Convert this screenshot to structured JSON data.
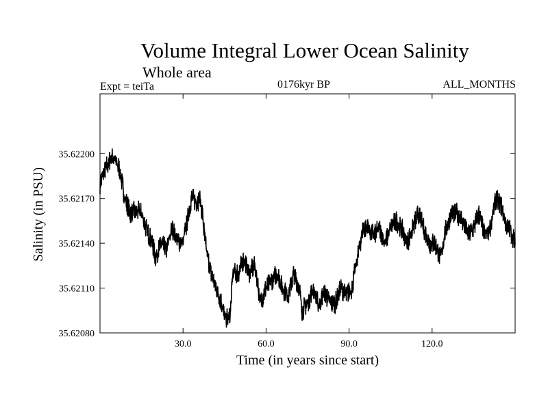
{
  "header": {
    "title": "Volume Integral Lower Ocean Salinity",
    "subtitle": "Whole area",
    "experiment": "Expt = teiTa",
    "period": "0176kyr BP",
    "months": "ALL_MONTHS"
  },
  "chart_data": {
    "type": "line",
    "title": "Volume Integral Lower Ocean Salinity",
    "subtitle": "Whole area",
    "xlabel": "Time (in years since start)",
    "ylabel": "Salinity (in PSU)",
    "xlim": [
      0,
      150
    ],
    "ylim": [
      35.6208,
      35.6224
    ],
    "xticks": [
      30,
      60,
      90,
      120
    ],
    "xtick_labels": [
      "30.0",
      "60.0",
      "90.0",
      "120.0"
    ],
    "yticks": [
      35.6208,
      35.6211,
      35.6214,
      35.6217,
      35.622
    ],
    "ytick_labels": [
      "35.62080",
      "35.62110",
      "35.62140",
      "35.62170",
      "35.62200"
    ],
    "grid": false,
    "series": [
      {
        "name": "Salinity",
        "x": [
          0,
          2,
          4,
          5,
          7,
          9,
          11,
          13,
          15,
          17,
          19,
          20,
          22,
          24,
          26,
          28,
          30,
          32,
          33,
          35,
          36,
          37,
          38,
          40,
          42,
          44,
          45,
          47,
          48,
          50,
          52,
          54,
          56,
          58,
          60,
          62,
          64,
          66,
          68,
          70,
          72,
          73,
          75,
          77,
          79,
          81,
          83,
          85,
          87,
          89,
          91,
          93,
          95,
          97,
          99,
          101,
          103,
          105,
          107,
          109,
          111,
          113,
          115,
          117,
          119,
          121,
          123,
          125,
          127,
          129,
          131,
          133,
          135,
          137,
          139,
          141,
          143,
          145,
          147,
          148,
          150
        ],
        "y": [
          35.6218,
          35.6219,
          35.62197,
          35.62197,
          35.6219,
          35.6217,
          35.6216,
          35.62162,
          35.6216,
          35.62148,
          35.6214,
          35.6213,
          35.6214,
          35.62135,
          35.6215,
          35.62142,
          35.6214,
          35.6216,
          35.6217,
          35.62168,
          35.6217,
          35.6216,
          35.6214,
          35.6212,
          35.6211,
          35.621,
          35.6209,
          35.6209,
          35.6212,
          35.6212,
          35.6213,
          35.6212,
          35.62125,
          35.621,
          35.6211,
          35.62115,
          35.6212,
          35.6211,
          35.62105,
          35.6212,
          35.6211,
          35.62095,
          35.621,
          35.6211,
          35.62098,
          35.62108,
          35.621,
          35.621,
          35.6211,
          35.62105,
          35.6211,
          35.6213,
          35.6215,
          35.6215,
          35.62145,
          35.6215,
          35.6214,
          35.6215,
          35.62155,
          35.6215,
          35.6214,
          35.6215,
          35.6216,
          35.6215,
          35.6214,
          35.6214,
          35.6213,
          35.6215,
          35.6216,
          35.6216,
          35.62155,
          35.62145,
          35.6215,
          35.6216,
          35.62145,
          35.6215,
          35.6217,
          35.62165,
          35.6215,
          35.6215,
          35.6214
        ]
      }
    ]
  }
}
